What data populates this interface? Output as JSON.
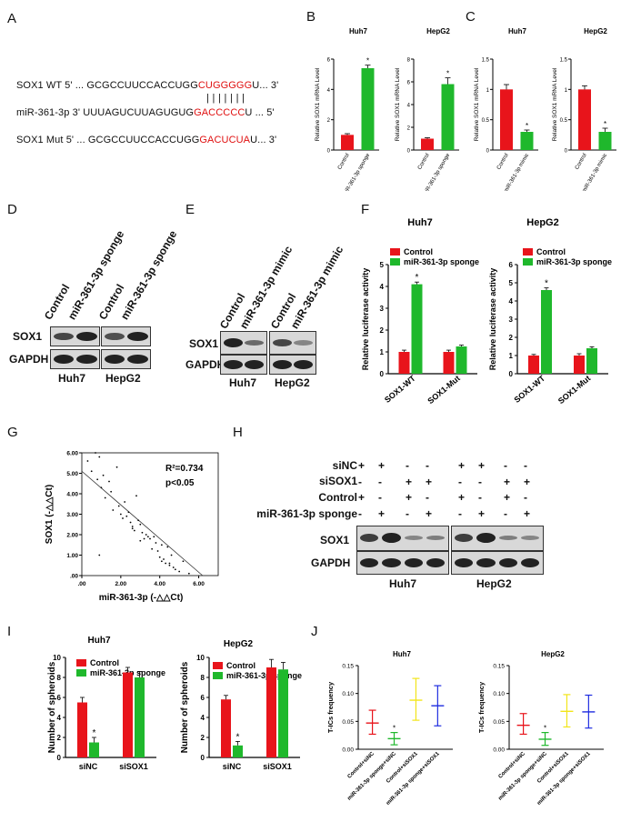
{
  "panel_letters": {
    "A": "A",
    "B": "B",
    "C": "C",
    "D": "D",
    "E": "E",
    "F": "F",
    "G": "G",
    "H": "H",
    "I": "I",
    "J": "J"
  },
  "sequences": {
    "wt_prefix": "SOX1 WT 5'  ... GCGCCUUCCACCUGG",
    "wt_red": "CUGGGGG",
    "wt_suffix": "U... 3'",
    "pairing": "| | | | | | |",
    "mir_prefix": "miR-361-3p  3'     UUUAGUCUUAGUGUG",
    "mir_red": "GACCCCC",
    "mir_suffix": "U ... 5'",
    "mut_prefix": "SOX1 Mut  5'  ... GCGCCUUCCACCUGG",
    "mut_red": "GACUCUA",
    "mut_suffix": "U... 3'"
  },
  "colors": {
    "control": "#e8141b",
    "treatment": "#1fb82c",
    "blue": "#1f2de0",
    "yellow": "#f2e51a",
    "red": "#e8141b",
    "green": "#1fb82c"
  },
  "blots": {
    "D": {
      "lanes": [
        "Control",
        "miR-361-3p sponge",
        "Control",
        "miR-361-3p sponge"
      ],
      "rows": [
        "SOX1",
        "GAPDH"
      ],
      "cells": [
        "Huh7",
        "HepG2"
      ]
    },
    "E": {
      "lanes": [
        "Control",
        "miR-361-3p mimic",
        "Control",
        "miR-361-3p mimic"
      ],
      "rows": [
        "SOX1",
        "GAPDH"
      ],
      "cells": [
        "Huh7",
        "HepG2"
      ]
    },
    "H": {
      "conditions": [
        "siNC",
        "siSOX1",
        "Control",
        "miR-361-3p sponge"
      ],
      "signs": [
        [
          "+",
          "+",
          "-",
          "-",
          "+",
          "+",
          "-",
          "-"
        ],
        [
          "-",
          "-",
          "+",
          "+",
          "-",
          "-",
          "+",
          "+"
        ],
        [
          "+",
          "-",
          "+",
          "-",
          "+",
          "-",
          "+",
          "-"
        ],
        [
          "-",
          "+",
          "-",
          "+",
          "-",
          "+",
          "-",
          "+"
        ]
      ],
      "rows": [
        "SOX1",
        "GAPDH"
      ],
      "cells": [
        "Huh7",
        "HepG2"
      ]
    }
  },
  "chart_data": [
    {
      "id": "B1",
      "type": "bar",
      "title": "Huh7",
      "ylabel": "Relative SOX1 mRNA Level",
      "categories": [
        "Control",
        "miR-361-3p sponge"
      ],
      "values": [
        1.0,
        5.4
      ],
      "errors": [
        0.08,
        0.2
      ],
      "sig": [
        "",
        "*"
      ],
      "ylim": [
        0,
        6
      ],
      "yticks": [
        0,
        2,
        4,
        6
      ],
      "colors": [
        "#e8141b",
        "#1fb82c"
      ]
    },
    {
      "id": "B2",
      "type": "bar",
      "title": "HepG2",
      "ylabel": "Relative SOX1 mRNA Level",
      "categories": [
        "Control",
        "miR-361-3p sponge"
      ],
      "values": [
        1.0,
        5.8
      ],
      "errors": [
        0.08,
        0.55
      ],
      "sig": [
        "",
        "*"
      ],
      "ylim": [
        0,
        8
      ],
      "yticks": [
        0,
        2,
        4,
        6,
        8
      ],
      "colors": [
        "#e8141b",
        "#1fb82c"
      ]
    },
    {
      "id": "C1",
      "type": "bar",
      "title": "Huh7",
      "ylabel": "Relative SOX1 mRNA Level",
      "categories": [
        "Control",
        "miR-361-3p mimic"
      ],
      "values": [
        1.0,
        0.3
      ],
      "errors": [
        0.08,
        0.03
      ],
      "sig": [
        "",
        "*"
      ],
      "ylim": [
        0,
        1.5
      ],
      "yticks": [
        0,
        0.5,
        1.0,
        1.5
      ],
      "colors": [
        "#e8141b",
        "#1fb82c"
      ]
    },
    {
      "id": "C2",
      "type": "bar",
      "title": "HepG2",
      "ylabel": "Relative SOX1 mRNA Level",
      "categories": [
        "Control",
        "miR-361-3p mimic"
      ],
      "values": [
        1.0,
        0.3
      ],
      "errors": [
        0.06,
        0.06
      ],
      "sig": [
        "",
        "*"
      ],
      "ylim": [
        0,
        1.5
      ],
      "yticks": [
        0,
        0.5,
        1.0,
        1.5
      ],
      "colors": [
        "#e8141b",
        "#1fb82c"
      ]
    },
    {
      "id": "F1",
      "type": "bar",
      "title": "Huh7",
      "ylabel": "Relative luciferase activity",
      "categories": [
        "SOX1-WT",
        "SOX1-Mut"
      ],
      "series": [
        {
          "name": "Control",
          "values": [
            1.0,
            1.0
          ],
          "errors": [
            0.08,
            0.08
          ]
        },
        {
          "name": "miR-361-3p sponge",
          "values": [
            4.1,
            1.25
          ],
          "errors": [
            0.1,
            0.06
          ]
        }
      ],
      "sig": [
        "*",
        ""
      ],
      "ylim": [
        0,
        5
      ],
      "yticks": [
        0,
        1,
        2,
        3,
        4,
        5
      ],
      "colors": [
        "#e8141b",
        "#1fb82c"
      ]
    },
    {
      "id": "F2",
      "type": "bar",
      "title": "HepG2",
      "ylabel": "Relative luciferase activity",
      "categories": [
        "SOX1-WT",
        "SOX1-Mut"
      ],
      "series": [
        {
          "name": "Control",
          "values": [
            1.0,
            1.0
          ],
          "errors": [
            0.06,
            0.1
          ]
        },
        {
          "name": "miR-361-3p sponge",
          "values": [
            4.6,
            1.4
          ],
          "errors": [
            0.12,
            0.08
          ]
        }
      ],
      "sig": [
        "*",
        ""
      ],
      "ylim": [
        0,
        6
      ],
      "yticks": [
        0,
        1,
        2,
        3,
        4,
        5,
        6
      ],
      "colors": [
        "#e8141b",
        "#1fb82c"
      ]
    },
    {
      "id": "G",
      "type": "scatter",
      "xlabel": "miR-361-3p (-△△Ct)",
      "ylabel": "SOX1 (-△△Ct)",
      "annot1": "R²=0.734",
      "annot2": "p<0.05",
      "xlim": [
        0,
        7
      ],
      "ylim": [
        0,
        6
      ],
      "xticklabels": [
        ".00",
        "2.00",
        "4.00",
        "6.00"
      ],
      "xtickvalues": [
        0,
        2,
        4,
        6
      ],
      "yticklabels": [
        ".00",
        "1.00",
        "2.00",
        "3.00",
        "4.00",
        "5.00",
        "6.00"
      ],
      "ytickvalues": [
        0,
        1,
        2,
        3,
        4,
        5,
        6
      ],
      "fit": [
        [
          0,
          5.1
        ],
        [
          6.2,
          0
        ]
      ],
      "x": [
        0.3,
        0.5,
        0.7,
        0.8,
        0.9,
        1.0,
        1.1,
        1.2,
        1.4,
        1.5,
        1.6,
        1.8,
        1.9,
        2.0,
        2.1,
        2.2,
        2.3,
        2.4,
        2.5,
        2.6,
        2.7,
        2.8,
        2.9,
        3.0,
        3.1,
        3.2,
        3.3,
        3.4,
        3.5,
        3.6,
        3.7,
        3.8,
        3.9,
        4.0,
        4.1,
        4.2,
        4.3,
        4.4,
        4.5,
        4.6,
        4.7,
        4.8,
        5.0,
        5.2,
        5.5,
        0.9,
        2.6,
        3.0,
        4.1,
        4.5
      ],
      "y": [
        5.6,
        5.1,
        6.0,
        4.7,
        5.8,
        4.3,
        4.9,
        3.8,
        4.6,
        4.1,
        3.2,
        5.3,
        3.4,
        3.0,
        2.8,
        3.6,
        2.9,
        3.1,
        2.6,
        2.4,
        2.2,
        3.9,
        2.7,
        2.5,
        2.1,
        1.8,
        2.0,
        1.9,
        1.8,
        1.3,
        1.9,
        1.6,
        1.2,
        0.9,
        0.7,
        0.8,
        0.6,
        1.4,
        0.5,
        1.0,
        0.4,
        0.3,
        0.2,
        0.7,
        0.1,
        1.0,
        2.3,
        1.7,
        1.5,
        0.6
      ]
    },
    {
      "id": "I1",
      "type": "bar",
      "title": "Huh7",
      "ylabel": "Number of spheroids",
      "categories": [
        "siNC",
        "siSOX1"
      ],
      "series": [
        {
          "name": "Control",
          "values": [
            5.5,
            8.5
          ],
          "errors": [
            0.5,
            0.5
          ]
        },
        {
          "name": "miR-361-3p sponge",
          "values": [
            1.5,
            8.0
          ],
          "errors": [
            0.5,
            0.6
          ]
        }
      ],
      "sig": [
        "*",
        ""
      ],
      "ylim": [
        0,
        10
      ],
      "yticks": [
        0,
        2,
        4,
        6,
        8,
        10
      ],
      "colors": [
        "#e8141b",
        "#1fb82c"
      ]
    },
    {
      "id": "I2",
      "type": "bar",
      "title": "HepG2",
      "ylabel": "Number of spheroids",
      "categories": [
        "siNC",
        "siSOX1"
      ],
      "series": [
        {
          "name": "Control",
          "values": [
            5.8,
            9.0
          ],
          "errors": [
            0.4,
            0.8
          ]
        },
        {
          "name": "miR-361-3p sponge",
          "values": [
            1.2,
            8.8
          ],
          "errors": [
            0.4,
            0.7
          ]
        }
      ],
      "sig": [
        "*",
        ""
      ],
      "ylim": [
        0,
        10
      ],
      "yticks": [
        0,
        2,
        4,
        6,
        8,
        10
      ],
      "colors": [
        "#e8141b",
        "#1fb82c"
      ]
    },
    {
      "id": "J1",
      "type": "scatter",
      "title": "Huh7",
      "ylabel": "T-ICs frequency",
      "categories": [
        "Control+siNC",
        "miR-361-3p sponge+siNC",
        "Control+siSOX1",
        "miR-361-3p sponge+siSOX1"
      ],
      "ylim": [
        0,
        0.15
      ],
      "yticks": [
        0,
        0.05,
        0.1,
        0.15
      ],
      "yticklabels": [
        "0.00",
        "0.05",
        "0.10",
        "0.15"
      ],
      "means": [
        0.047,
        0.019,
        0.088,
        0.078
      ],
      "upper": [
        0.07,
        0.03,
        0.127,
        0.114
      ],
      "lower": [
        0.027,
        0.008,
        0.052,
        0.042
      ],
      "sig": [
        "",
        "*",
        "",
        ""
      ],
      "colors": [
        "#e8141b",
        "#1fb82c",
        "#f2e51a",
        "#1f2de0"
      ]
    },
    {
      "id": "J2",
      "type": "scatter",
      "title": "HepG2",
      "ylabel": "T-ICs frequency",
      "categories": [
        "Control+siNC",
        "miR-361-3p sponge+siNC",
        "Control+siSOX1",
        "miR-361-3p sponge+siSOX1"
      ],
      "ylim": [
        0,
        0.15
      ],
      "yticks": [
        0,
        0.05,
        0.1,
        0.15
      ],
      "yticklabels": [
        "0.00",
        "0.05",
        "0.10",
        "0.15"
      ],
      "means": [
        0.043,
        0.018,
        0.068,
        0.067
      ],
      "upper": [
        0.064,
        0.03,
        0.098,
        0.097
      ],
      "lower": [
        0.027,
        0.007,
        0.04,
        0.038
      ],
      "sig": [
        "",
        "*",
        "",
        ""
      ],
      "colors": [
        "#e8141b",
        "#1fb82c",
        "#f2e51a",
        "#1f2de0"
      ]
    }
  ]
}
